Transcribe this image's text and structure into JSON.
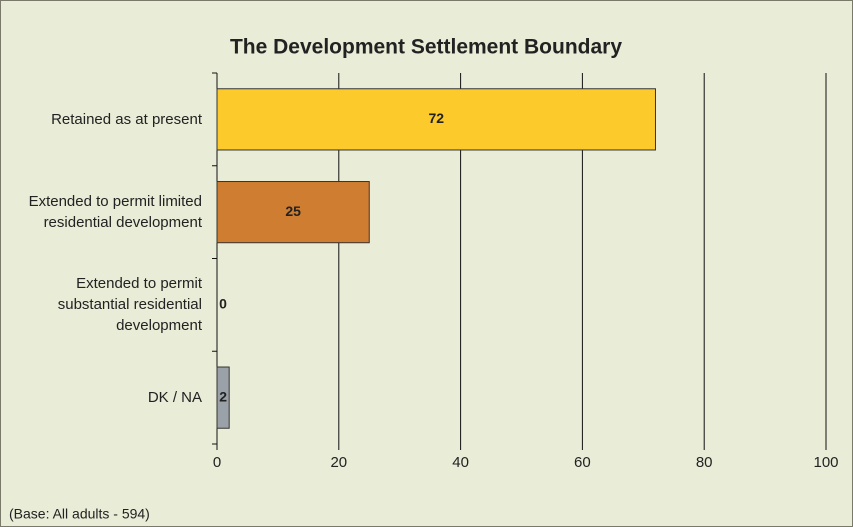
{
  "chart_data": {
    "type": "bar",
    "orientation": "horizontal",
    "title": "The Development Settlement Boundary",
    "categories": [
      "Retained as at present",
      "Extended to permit limited residential development",
      "Extended to permit substantial residential development",
      "DK / NA"
    ],
    "values": [
      72,
      25,
      0,
      2
    ],
    "colors": [
      "#fdca2b",
      "#cf7d30",
      "#cf7d30",
      "#9ba1a9"
    ],
    "xlim": [
      0,
      100
    ],
    "xticks": [
      0,
      20,
      40,
      60,
      80,
      100
    ],
    "grid": true,
    "note": "(Base: All adults - 594)"
  }
}
